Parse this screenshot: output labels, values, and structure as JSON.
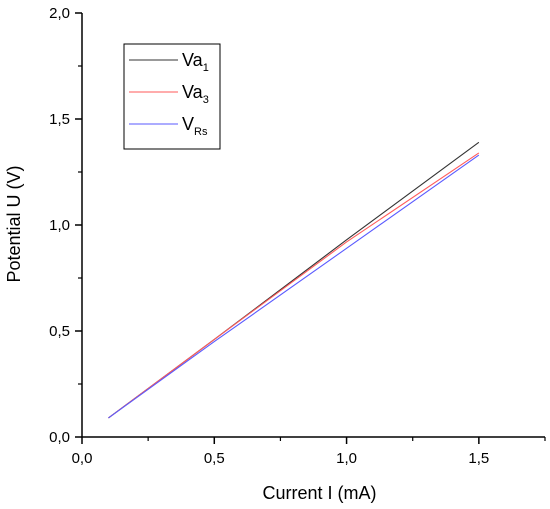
{
  "chart_data": {
    "type": "line",
    "xlabel": "Current I (mA)",
    "ylabel": "Potential U (V)",
    "xlim": [
      0.0,
      1.75
    ],
    "ylim": [
      0.0,
      2.0
    ],
    "x_ticks": [
      0.0,
      0.5,
      1.0,
      1.5
    ],
    "x_tick_labels": [
      "0,0",
      "0,5",
      "1,0",
      "1,5"
    ],
    "y_ticks": [
      0.0,
      0.5,
      1.0,
      1.5,
      2.0
    ],
    "y_tick_labels": [
      "0,0",
      "0,5",
      "1,0",
      "1,5",
      "2,0"
    ],
    "grid": false,
    "legend_position": "top-left",
    "series": [
      {
        "name": "Va1",
        "label_main": "Va",
        "label_sub": "1",
        "color": "#333333",
        "points": [
          [
            0.1,
            0.09
          ],
          [
            0.5,
            0.46
          ],
          [
            1.0,
            0.93
          ],
          [
            1.5,
            1.39
          ]
        ]
      },
      {
        "name": "Va3",
        "label_main": "Va",
        "label_sub": "3",
        "color": "#ff5a5a",
        "points": [
          [
            0.1,
            0.09
          ],
          [
            0.5,
            0.46
          ],
          [
            1.0,
            0.92
          ],
          [
            1.5,
            1.34
          ]
        ]
      },
      {
        "name": "VRs",
        "label_main": "V",
        "label_sub": "Rs",
        "color": "#5a5aff",
        "points": [
          [
            0.1,
            0.09
          ],
          [
            0.5,
            0.45
          ],
          [
            1.0,
            0.89
          ],
          [
            1.5,
            1.33
          ]
        ]
      }
    ]
  }
}
